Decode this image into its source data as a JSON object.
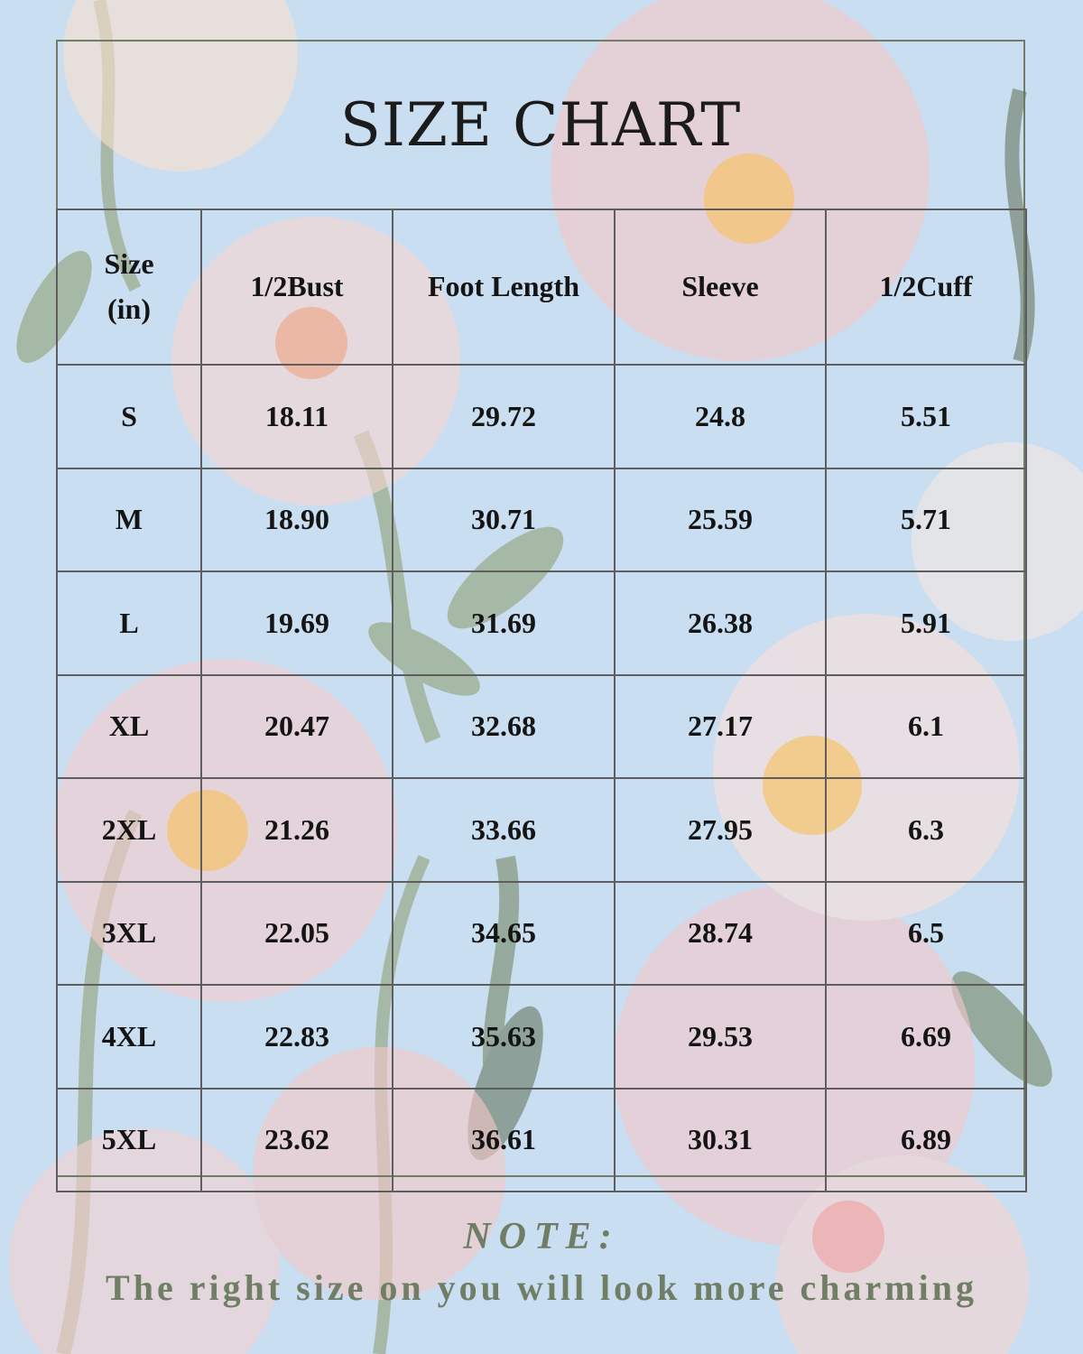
{
  "title": "SIZE CHART",
  "table": {
    "headers": [
      "Size\n(in)",
      "1/2Bust",
      "Foot Length",
      "Sleeve",
      "1/2Cuff"
    ],
    "rows": [
      [
        "S",
        "18.11",
        "29.72",
        "24.8",
        "5.51"
      ],
      [
        "M",
        "18.90",
        "30.71",
        "25.59",
        "5.71"
      ],
      [
        "L",
        "19.69",
        "31.69",
        "26.38",
        "5.91"
      ],
      [
        "XL",
        "20.47",
        "32.68",
        "27.17",
        "6.1"
      ],
      [
        "2XL",
        "21.26",
        "33.66",
        "27.95",
        "6.3"
      ],
      [
        "3XL",
        "22.05",
        "34.65",
        "28.74",
        "6.5"
      ],
      [
        "4XL",
        "22.83",
        "35.63",
        "29.53",
        "6.69"
      ],
      [
        "5XL",
        "23.62",
        "36.61",
        "30.31",
        "6.89"
      ]
    ]
  },
  "note": {
    "label": "NOTE:",
    "text": "The right size on you will look more charming"
  },
  "colors": {
    "background": "#c9def0",
    "border": "#5e5e5e",
    "note_green": "#6f7d66",
    "flower_pink": "#f7c6c6",
    "flower_center": "#f6c36b",
    "leaf_green": "#8a9a6a"
  }
}
